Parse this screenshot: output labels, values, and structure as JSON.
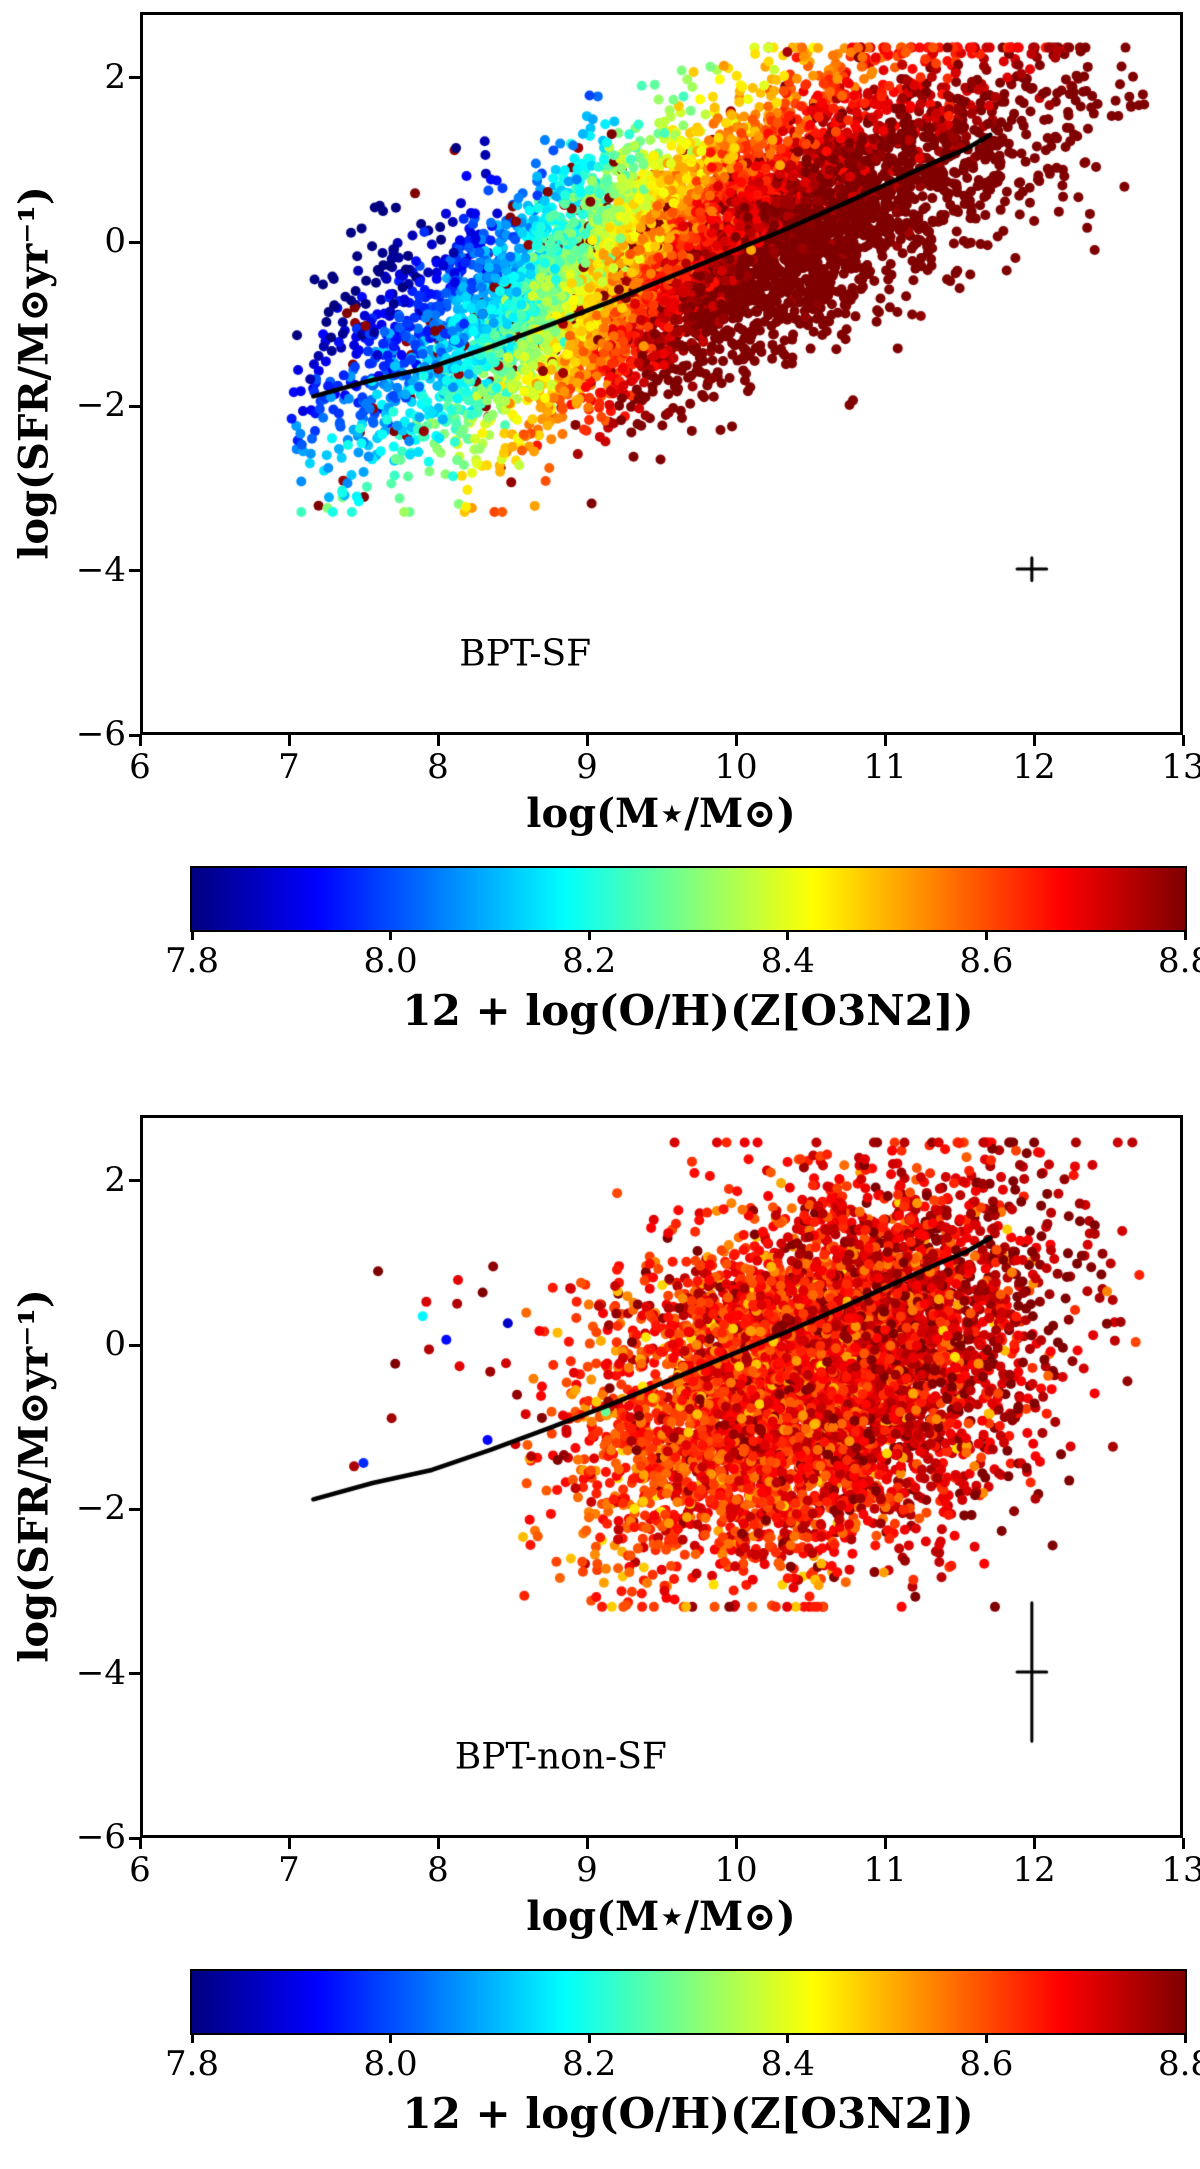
{
  "page": {
    "background": "#ffffff",
    "frame_color": "#000000",
    "line_color": "#000000"
  },
  "chart_data": [
    {
      "type": "scatter",
      "annotation": "BPT-SF",
      "annotation_pos": {
        "x": 8.56,
        "y": -5.0
      },
      "xlabel": "log(M⋆/M⊙)",
      "ylabel": "log(SFR/M⊙yr⁻¹)",
      "xlim": [
        6,
        13
      ],
      "ylim": [
        -6,
        2.8
      ],
      "xticks": {
        "values": [
          6,
          7,
          8,
          9,
          10,
          11,
          12,
          13
        ],
        "labels": [
          "6",
          "7",
          "8",
          "9",
          "10",
          "11",
          "12",
          "13"
        ]
      },
      "yticks": {
        "values": [
          -6,
          -4,
          -2,
          0,
          2
        ],
        "labels": [
          "−6",
          "−4",
          "−2",
          "0",
          "2"
        ]
      },
      "grid": false,
      "colormap": "jet",
      "color_range": [
        7.8,
        8.8
      ],
      "colorbar": {
        "label": "12 + log(O/H)(Z[O3N2])",
        "ticks": {
          "values": [
            7.8,
            8.0,
            8.2,
            8.4,
            8.6,
            8.8
          ],
          "labels": [
            "7.8",
            "8.0",
            "8.2",
            "8.4",
            "8.6",
            "8.8"
          ]
        }
      },
      "median_line": [
        [
          7.15,
          -1.88
        ],
        [
          7.55,
          -1.68
        ],
        [
          7.95,
          -1.52
        ],
        [
          8.35,
          -1.27
        ],
        [
          8.75,
          -1.0
        ],
        [
          9.15,
          -0.72
        ],
        [
          9.55,
          -0.42
        ],
        [
          9.95,
          -0.12
        ],
        [
          10.35,
          0.18
        ],
        [
          10.75,
          0.5
        ],
        [
          11.05,
          0.75
        ],
        [
          11.35,
          1.0
        ],
        [
          11.55,
          1.15
        ],
        [
          11.72,
          1.33
        ]
      ],
      "errorbar": {
        "x": 12.0,
        "y": -4.0,
        "xerr": 0.1,
        "yerr": 0.14
      },
      "points": {
        "seed": 42,
        "n": 7000,
        "marker_radius_px": 5,
        "generator": {
          "mass": {
            "mean": 9.6,
            "sigma": 1.1,
            "min": 7.0,
            "max": 12.8
          },
          "sfr": {
            "slope": 0.7,
            "pivot": 10.0,
            "intercept": 0.15,
            "sigma": 0.78,
            "min": -3.3,
            "max": 2.4
          },
          "metallicity": {
            "mode": "mzr",
            "base": 7.88,
            "amp": 1.0,
            "m0": 8.9,
            "width": 0.65,
            "fmr": 0.15,
            "noise": 0.06,
            "red_outlier_p": 0.045,
            "min": 7.78,
            "max": 8.85
          },
          "outliers": null
        }
      }
    },
    {
      "type": "scatter",
      "annotation": "BPT-non-SF",
      "annotation_pos": {
        "x": 8.8,
        "y": -5.0
      },
      "xlabel": "log(M⋆/M⊙)",
      "ylabel": "log(SFR/M⊙yr⁻¹)",
      "xlim": [
        6,
        13
      ],
      "ylim": [
        -6,
        2.8
      ],
      "xticks": {
        "values": [
          6,
          7,
          8,
          9,
          10,
          11,
          12,
          13
        ],
        "labels": [
          "6",
          "7",
          "8",
          "9",
          "10",
          "11",
          "12",
          "13"
        ]
      },
      "yticks": {
        "values": [
          -6,
          -4,
          -2,
          0,
          2
        ],
        "labels": [
          "−6",
          "−4",
          "−2",
          "0",
          "2"
        ]
      },
      "grid": false,
      "colormap": "jet",
      "color_range": [
        7.8,
        8.8
      ],
      "colorbar": {
        "label": "12 + log(O/H)(Z[O3N2])",
        "ticks": {
          "values": [
            7.8,
            8.0,
            8.2,
            8.4,
            8.6,
            8.8
          ],
          "labels": [
            "7.8",
            "8.0",
            "8.2",
            "8.4",
            "8.6",
            "8.8"
          ]
        }
      },
      "median_line": [
        [
          7.15,
          -1.88
        ],
        [
          7.55,
          -1.68
        ],
        [
          7.95,
          -1.52
        ],
        [
          8.35,
          -1.27
        ],
        [
          8.75,
          -1.0
        ],
        [
          9.15,
          -0.72
        ],
        [
          9.55,
          -0.42
        ],
        [
          9.95,
          -0.12
        ],
        [
          10.35,
          0.18
        ],
        [
          10.75,
          0.5
        ],
        [
          11.05,
          0.75
        ],
        [
          11.35,
          1.0
        ],
        [
          11.55,
          1.15
        ],
        [
          11.72,
          1.33
        ]
      ],
      "errorbar": {
        "x": 12.0,
        "y": -4.0,
        "xerr": 0.1,
        "yerr": 0.85
      },
      "points": {
        "seed": 137,
        "n": 6000,
        "marker_radius_px": 5,
        "generator": {
          "mass": {
            "mean": 10.55,
            "sigma": 0.72,
            "min": 8.55,
            "max": 12.75
          },
          "sfr": {
            "slope": 0.5,
            "pivot": 10.5,
            "intercept": -0.4,
            "sigma": 1.05,
            "min": -3.2,
            "max": 2.5
          },
          "metallicity": {
            "mode": "red",
            "base": 8.68,
            "mslope": 0.04,
            "pivot": 10.5,
            "noise": 0.07,
            "low_p": 0.03,
            "min": 8.45,
            "max": 8.85
          },
          "outliers": {
            "n": 40,
            "mass_min": 7.2,
            "mass_max": 9.45,
            "sfr_min": -1.6,
            "sfr_max": 1.0
          }
        }
      }
    }
  ]
}
